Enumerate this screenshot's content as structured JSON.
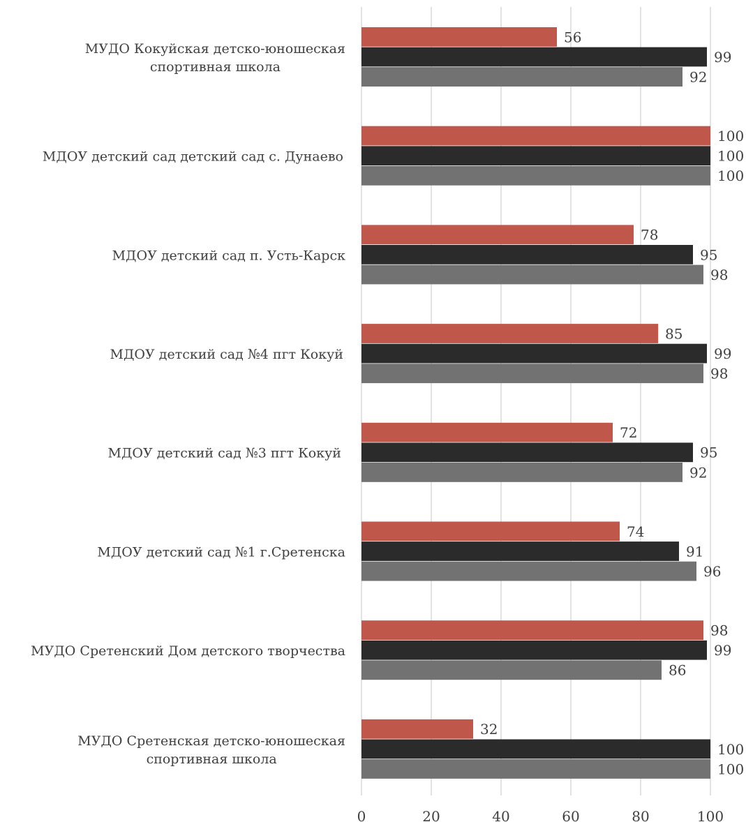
{
  "chart_data": {
    "type": "bar",
    "orientation": "horizontal",
    "title": "",
    "xlabel": "",
    "ylabel": "",
    "xlim": [
      0,
      100
    ],
    "x_ticks": [
      "0",
      "20",
      "40",
      "60",
      "80",
      "100"
    ],
    "grid": true,
    "legend": "none",
    "categories": [
      [
        "МУДО Кокуйская детско-юношеская",
        "спортивная школа"
      ],
      [
        "МДОУ  детский сад детский сад с. Дунаево"
      ],
      [
        "МДОУ детский сад п. Усть-Карск"
      ],
      [
        "МДОУ детский сад №4 пгт  Кокуй"
      ],
      [
        "МДОУ детский сад  №3 пгт  Кокуй"
      ],
      [
        "МДОУ детский сад №1 г.Сретенска"
      ],
      [
        "МУДО Сретенский Дом детского творчества"
      ],
      [
        "МУДО Сретенская детско-юношеская",
        "спортивная школа"
      ]
    ],
    "series": [
      {
        "color": "#c0574b",
        "values": [
          56,
          100,
          78,
          85,
          72,
          74,
          98,
          32
        ]
      },
      {
        "color": "#2b2b2b",
        "values": [
          99,
          100,
          95,
          99,
          95,
          91,
          99,
          100
        ]
      },
      {
        "color": "#727272",
        "values": [
          92,
          100,
          98,
          98,
          92,
          96,
          86,
          100
        ]
      }
    ]
  }
}
